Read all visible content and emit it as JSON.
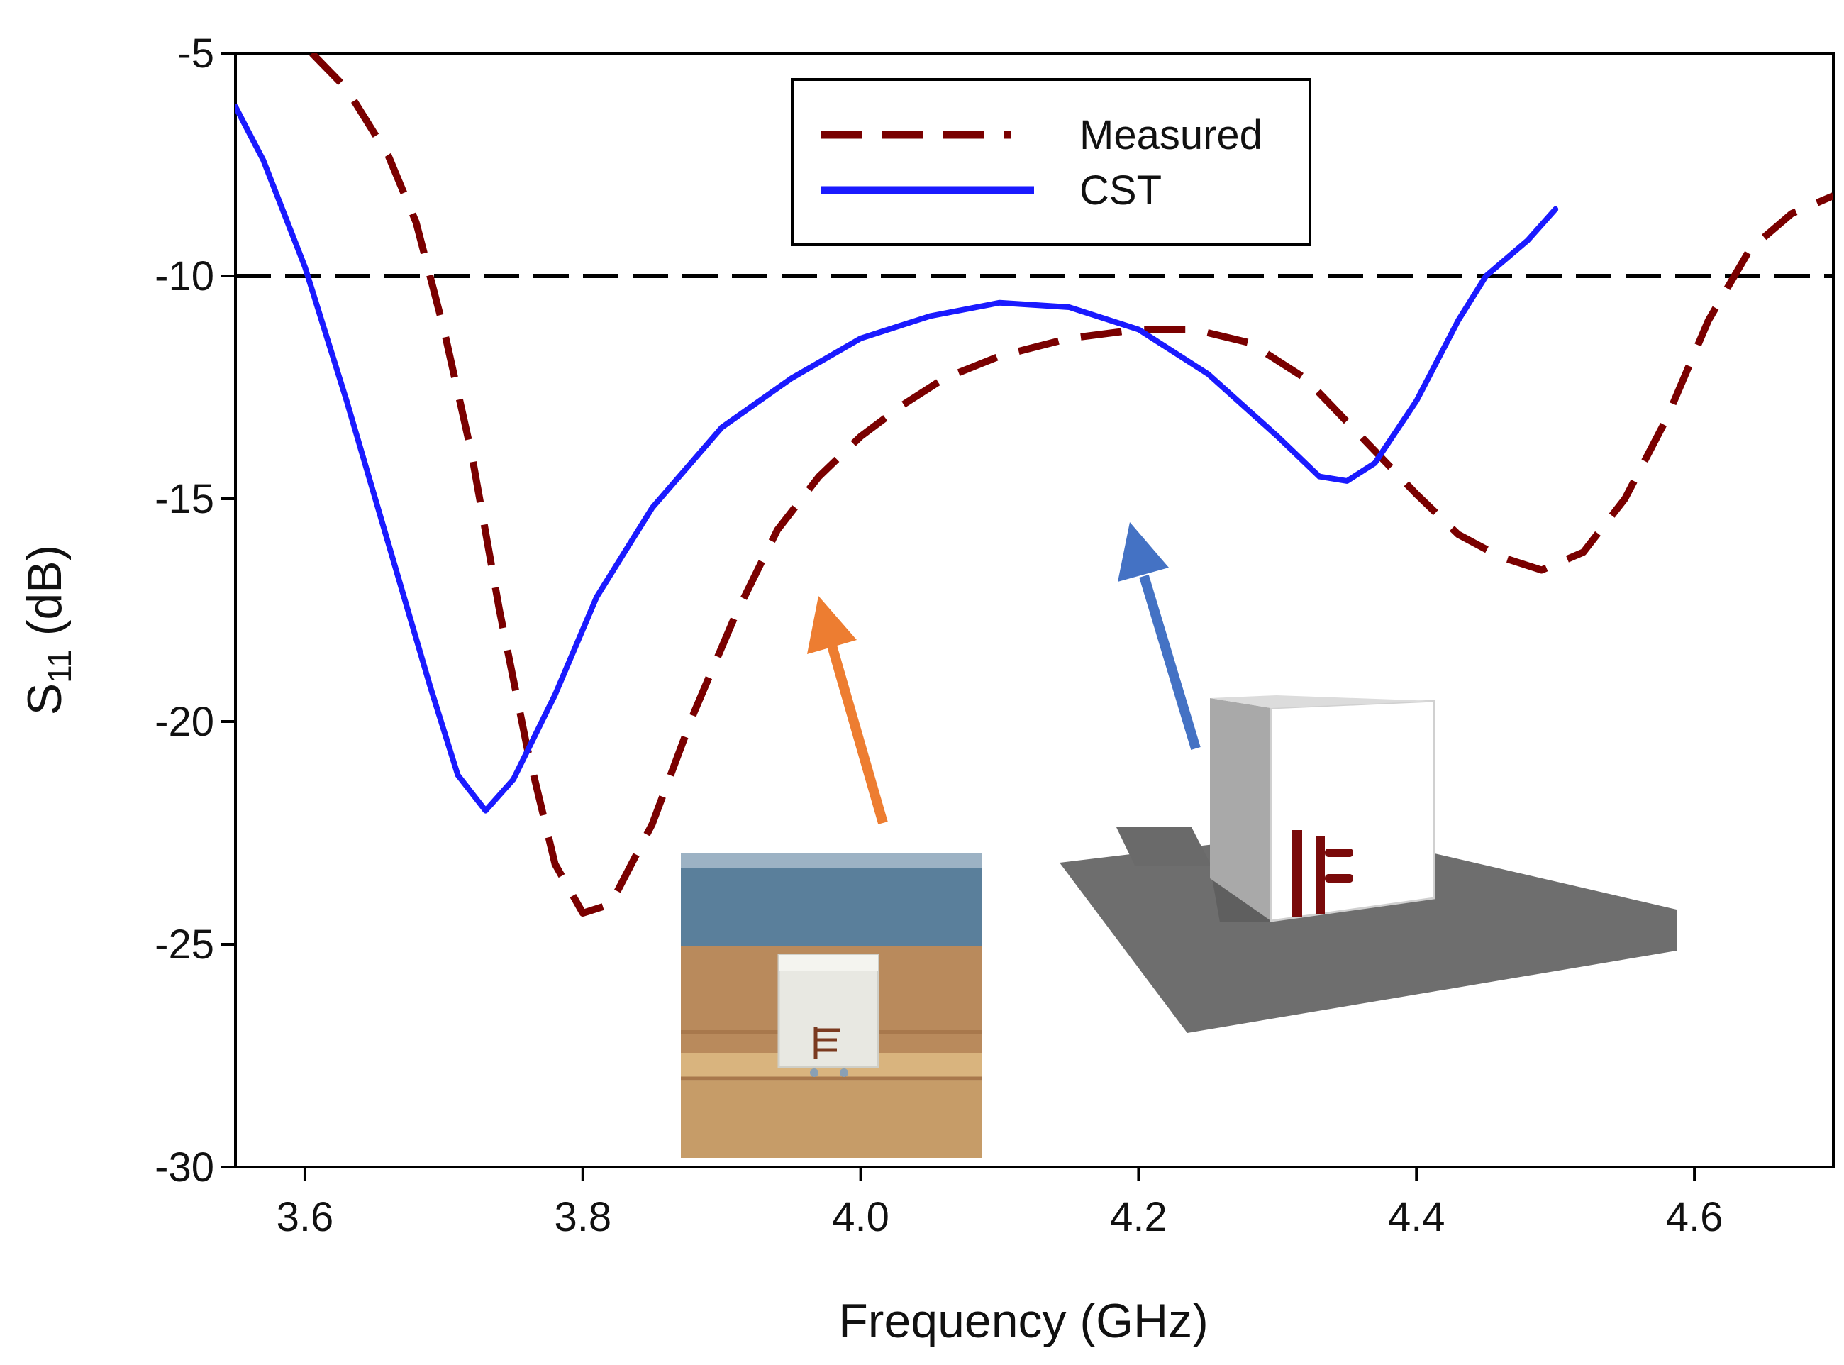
{
  "chart_data": {
    "type": "line",
    "title": "",
    "xlabel": "Frequency (GHz)",
    "ylabel": {
      "main": "S",
      "sub": "11",
      "unit": " (dB)"
    },
    "xlim": [
      3.55,
      4.7
    ],
    "ylim": [
      -30,
      -5
    ],
    "x_ticks": [
      3.6,
      3.8,
      4.0,
      4.2,
      4.4,
      4.6
    ],
    "x_tick_labels": [
      "3.6",
      "3.8",
      "4.0",
      "4.2",
      "4.4",
      "4.6"
    ],
    "y_ticks": [
      -5,
      -10,
      -15,
      -20,
      -25,
      -30
    ],
    "y_tick_labels": [
      "-5",
      "-10",
      "-15",
      "-20",
      "-25",
      "-30"
    ],
    "grid": false,
    "legend_position": "top-center",
    "reference_line": {
      "y": -10,
      "style": "dashed",
      "color": "#000000"
    },
    "series": [
      {
        "name": "Measured",
        "style": "dashed",
        "color": "#7a0000",
        "points": [
          [
            3.605,
            -5.0
          ],
          [
            3.63,
            -5.8
          ],
          [
            3.66,
            -7.3
          ],
          [
            3.68,
            -8.8
          ],
          [
            3.7,
            -11.2
          ],
          [
            3.72,
            -14.0
          ],
          [
            3.74,
            -17.5
          ],
          [
            3.76,
            -20.6
          ],
          [
            3.78,
            -23.2
          ],
          [
            3.8,
            -24.3
          ],
          [
            3.82,
            -24.1
          ],
          [
            3.85,
            -22.3
          ],
          [
            3.88,
            -19.8
          ],
          [
            3.91,
            -17.6
          ],
          [
            3.94,
            -15.7
          ],
          [
            3.97,
            -14.5
          ],
          [
            4.0,
            -13.6
          ],
          [
            4.03,
            -12.9
          ],
          [
            4.06,
            -12.3
          ],
          [
            4.1,
            -11.8
          ],
          [
            4.15,
            -11.4
          ],
          [
            4.2,
            -11.2
          ],
          [
            4.24,
            -11.2
          ],
          [
            4.28,
            -11.5
          ],
          [
            4.32,
            -12.3
          ],
          [
            4.36,
            -13.6
          ],
          [
            4.4,
            -14.9
          ],
          [
            4.43,
            -15.8
          ],
          [
            4.46,
            -16.3
          ],
          [
            4.49,
            -16.6
          ],
          [
            4.52,
            -16.2
          ],
          [
            4.55,
            -15.0
          ],
          [
            4.58,
            -13.2
          ],
          [
            4.61,
            -11.0
          ],
          [
            4.64,
            -9.4
          ],
          [
            4.67,
            -8.6
          ],
          [
            4.7,
            -8.2
          ]
        ]
      },
      {
        "name": "CST",
        "style": "solid",
        "color": "#1a1aff",
        "points": [
          [
            3.55,
            -6.2
          ],
          [
            3.57,
            -7.4
          ],
          [
            3.6,
            -9.8
          ],
          [
            3.63,
            -12.8
          ],
          [
            3.66,
            -16.0
          ],
          [
            3.69,
            -19.2
          ],
          [
            3.71,
            -21.2
          ],
          [
            3.73,
            -22.0
          ],
          [
            3.75,
            -21.3
          ],
          [
            3.78,
            -19.4
          ],
          [
            3.81,
            -17.2
          ],
          [
            3.85,
            -15.2
          ],
          [
            3.9,
            -13.4
          ],
          [
            3.95,
            -12.3
          ],
          [
            4.0,
            -11.4
          ],
          [
            4.05,
            -10.9
          ],
          [
            4.1,
            -10.6
          ],
          [
            4.15,
            -10.7
          ],
          [
            4.2,
            -11.2
          ],
          [
            4.25,
            -12.2
          ],
          [
            4.3,
            -13.6
          ],
          [
            4.33,
            -14.5
          ],
          [
            4.35,
            -14.6
          ],
          [
            4.37,
            -14.2
          ],
          [
            4.4,
            -12.8
          ],
          [
            4.43,
            -11.0
          ],
          [
            4.45,
            -10.0
          ],
          [
            4.48,
            -9.2
          ],
          [
            4.5,
            -8.5
          ]
        ]
      }
    ]
  }
}
